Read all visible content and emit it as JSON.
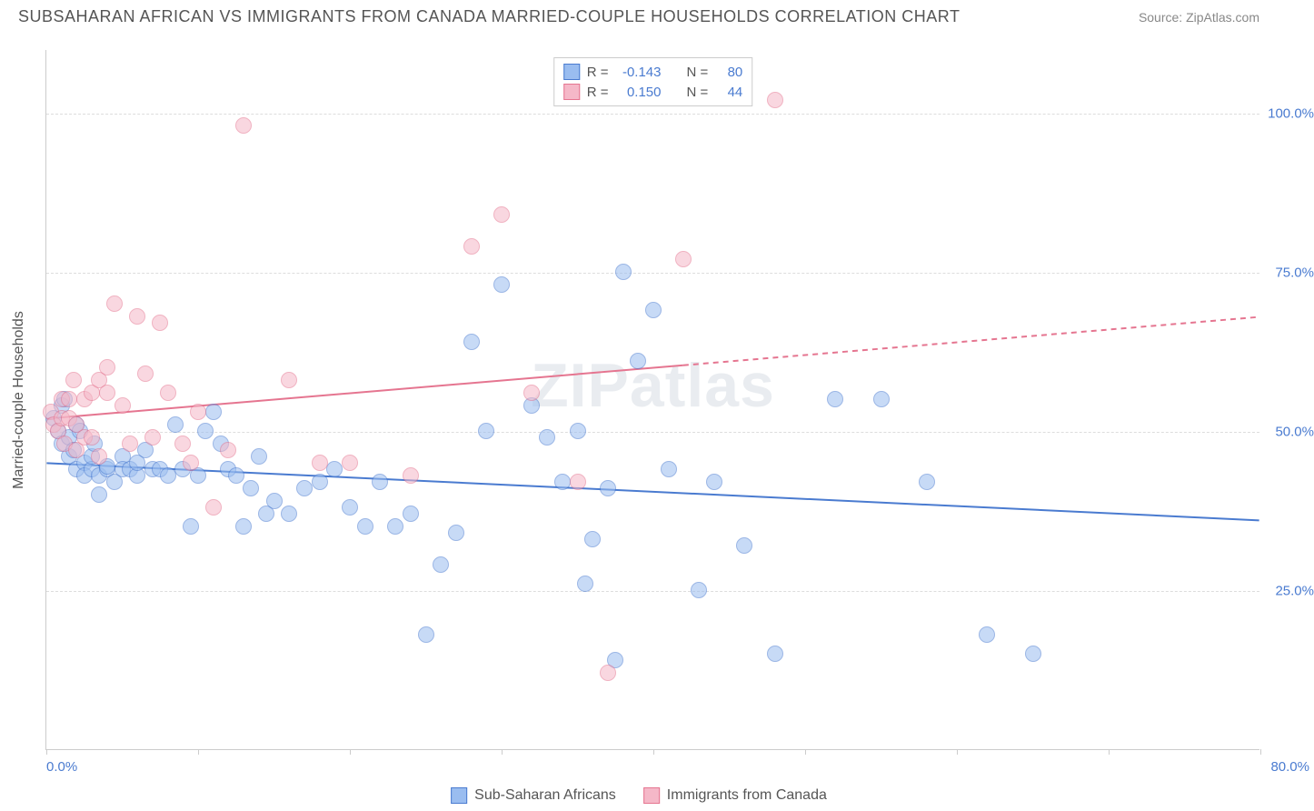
{
  "header": {
    "title": "SUBSAHARAN AFRICAN VS IMMIGRANTS FROM CANADA MARRIED-COUPLE HOUSEHOLDS CORRELATION CHART",
    "source": "Source: ZipAtlas.com"
  },
  "watermark": "ZIPatlas",
  "chart": {
    "type": "scatter",
    "y_axis_label": "Married-couple Households",
    "background_color": "#ffffff",
    "grid_color": "#dddddd",
    "axis_color": "#cccccc",
    "tick_label_color": "#4a7bd0",
    "axis_label_color": "#555555",
    "xlim": [
      0,
      80
    ],
    "ylim": [
      0,
      110
    ],
    "x_ticks": [
      0,
      10,
      20,
      30,
      40,
      50,
      60,
      70,
      80
    ],
    "x_tick_labels": {
      "0": "0.0%",
      "80": "80.0%"
    },
    "y_gridlines": [
      25,
      50,
      75,
      100
    ],
    "y_tick_labels": [
      "25.0%",
      "50.0%",
      "75.0%",
      "100.0%"
    ],
    "marker_radius": 9,
    "marker_opacity": 0.55,
    "series": [
      {
        "id": "subsaharan",
        "label": "Sub-Saharan Africans",
        "fill_color": "#9abdf0",
        "stroke_color": "#4a7bd0",
        "R": "-0.143",
        "N": "80",
        "trend": {
          "x1": 0,
          "y1": 45,
          "x2": 80,
          "y2": 36,
          "solid_until_x": 80,
          "line_width": 2
        },
        "points": [
          [
            0.5,
            52
          ],
          [
            0.8,
            50
          ],
          [
            1,
            54
          ],
          [
            1,
            48
          ],
          [
            1.2,
            55
          ],
          [
            1.5,
            49
          ],
          [
            1.5,
            46
          ],
          [
            1.8,
            47
          ],
          [
            2,
            44
          ],
          [
            2,
            51
          ],
          [
            2.2,
            50
          ],
          [
            2.5,
            45
          ],
          [
            2.5,
            43
          ],
          [
            3,
            44
          ],
          [
            3,
            46
          ],
          [
            3.2,
            48
          ],
          [
            3.5,
            40
          ],
          [
            3.5,
            43
          ],
          [
            4,
            44
          ],
          [
            4,
            44.5
          ],
          [
            4.5,
            42
          ],
          [
            5,
            46
          ],
          [
            5,
            44
          ],
          [
            5.5,
            44
          ],
          [
            6,
            43
          ],
          [
            6,
            45
          ],
          [
            6.5,
            47
          ],
          [
            7,
            44
          ],
          [
            7.5,
            44
          ],
          [
            8,
            43
          ],
          [
            8.5,
            51
          ],
          [
            9,
            44
          ],
          [
            9.5,
            35
          ],
          [
            10,
            43
          ],
          [
            10.5,
            50
          ],
          [
            11,
            53
          ],
          [
            11.5,
            48
          ],
          [
            12,
            44
          ],
          [
            12.5,
            43
          ],
          [
            13,
            35
          ],
          [
            13.5,
            41
          ],
          [
            14,
            46
          ],
          [
            14.5,
            37
          ],
          [
            15,
            39
          ],
          [
            16,
            37
          ],
          [
            17,
            41
          ],
          [
            18,
            42
          ],
          [
            19,
            44
          ],
          [
            20,
            38
          ],
          [
            21,
            35
          ],
          [
            22,
            42
          ],
          [
            23,
            35
          ],
          [
            24,
            37
          ],
          [
            25,
            18
          ],
          [
            26,
            29
          ],
          [
            27,
            34
          ],
          [
            28,
            64
          ],
          [
            29,
            50
          ],
          [
            30,
            73
          ],
          [
            32,
            54
          ],
          [
            33,
            49
          ],
          [
            34,
            42
          ],
          [
            35,
            50
          ],
          [
            35.5,
            26
          ],
          [
            36,
            33
          ],
          [
            37,
            41
          ],
          [
            37.5,
            14
          ],
          [
            38,
            75
          ],
          [
            39,
            61
          ],
          [
            40,
            69
          ],
          [
            41,
            44
          ],
          [
            43,
            25
          ],
          [
            44,
            42
          ],
          [
            46,
            32
          ],
          [
            48,
            15
          ],
          [
            52,
            55
          ],
          [
            55,
            55
          ],
          [
            58,
            42
          ],
          [
            62,
            18
          ],
          [
            65,
            15
          ]
        ]
      },
      {
        "id": "canada",
        "label": "Immigrants from Canada",
        "fill_color": "#f5b8c8",
        "stroke_color": "#e57590",
        "R": "0.150",
        "N": "44",
        "trend": {
          "x1": 0,
          "y1": 52,
          "x2": 80,
          "y2": 68,
          "solid_until_x": 42,
          "line_width": 2
        },
        "points": [
          [
            0.3,
            53
          ],
          [
            0.5,
            51
          ],
          [
            0.8,
            50
          ],
          [
            1,
            55
          ],
          [
            1,
            52
          ],
          [
            1.2,
            48
          ],
          [
            1.5,
            55
          ],
          [
            1.5,
            52
          ],
          [
            1.8,
            58
          ],
          [
            2,
            47
          ],
          [
            2,
            51
          ],
          [
            2.5,
            55
          ],
          [
            2.5,
            49
          ],
          [
            3,
            56
          ],
          [
            3,
            49
          ],
          [
            3.5,
            58
          ],
          [
            3.5,
            46
          ],
          [
            4,
            56
          ],
          [
            4,
            60
          ],
          [
            4.5,
            70
          ],
          [
            5,
            54
          ],
          [
            5.5,
            48
          ],
          [
            6,
            68
          ],
          [
            6.5,
            59
          ],
          [
            7,
            49
          ],
          [
            7.5,
            67
          ],
          [
            8,
            56
          ],
          [
            9,
            48
          ],
          [
            9.5,
            45
          ],
          [
            10,
            53
          ],
          [
            11,
            38
          ],
          [
            12,
            47
          ],
          [
            13,
            98
          ],
          [
            16,
            58
          ],
          [
            18,
            45
          ],
          [
            20,
            45
          ],
          [
            24,
            43
          ],
          [
            28,
            79
          ],
          [
            30,
            84
          ],
          [
            32,
            56
          ],
          [
            35,
            42
          ],
          [
            37,
            12
          ],
          [
            42,
            77
          ],
          [
            48,
            102
          ]
        ]
      }
    ]
  },
  "stat_legend": {
    "rows": [
      {
        "swatch_fill": "#9abdf0",
        "swatch_stroke": "#4a7bd0",
        "r_label": "R =",
        "r_value": "-0.143",
        "n_label": "N =",
        "n_value": "80"
      },
      {
        "swatch_fill": "#f5b8c8",
        "swatch_stroke": "#e57590",
        "r_label": "R =",
        "r_value": "0.150",
        "n_label": "N =",
        "n_value": "44"
      }
    ]
  },
  "bottom_legend": {
    "items": [
      {
        "swatch_fill": "#9abdf0",
        "swatch_stroke": "#4a7bd0",
        "label": "Sub-Saharan Africans"
      },
      {
        "swatch_fill": "#f5b8c8",
        "swatch_stroke": "#e57590",
        "label": "Immigrants from Canada"
      }
    ]
  }
}
